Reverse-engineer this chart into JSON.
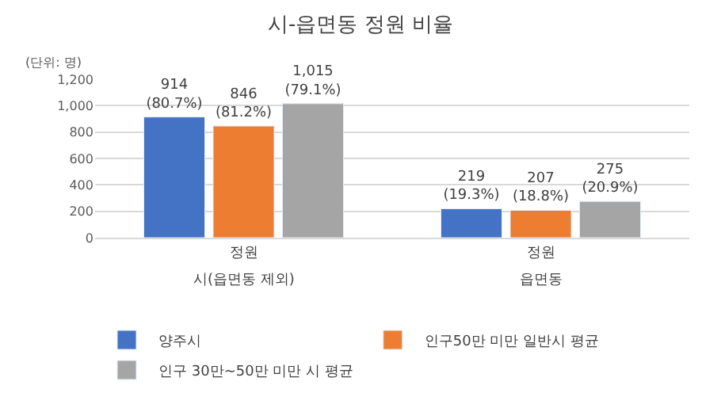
{
  "chart_data": {
    "type": "bar",
    "title": "시-읍면동 정원 비율",
    "ylabel": "(단위: 명)",
    "categories": [
      "정원",
      "정원"
    ],
    "series": [
      {
        "name": "양주시",
        "color": "#4472c4",
        "values": [
          914,
          219
        ],
        "value_labels": [
          "914\n(80.7%)",
          "219\n(19.3%)"
        ]
      },
      {
        "name": "인구50만 미만 일반시 평균",
        "color": "#ed7d31",
        "values": [
          846,
          207
        ],
        "value_labels": [
          "846\n(81.2%)",
          "207\n(18.8%)"
        ]
      },
      {
        "name": "인구 30만~50만 미만 시 평균",
        "color": "#a5a5a5",
        "values": [
          1015,
          275
        ],
        "value_labels": [
          "1,015\n(79.1%)",
          "275\n(20.9%)"
        ]
      }
    ],
    "annotations": [
      "시(읍면동 제외)",
      "읍면동"
    ],
    "ylim": [
      0,
      1200
    ],
    "yticks": [
      {
        "value": 0,
        "label": "0"
      },
      {
        "value": 200,
        "label": "200"
      },
      {
        "value": 400,
        "label": "400"
      },
      {
        "value": 600,
        "label": "600"
      },
      {
        "value": 800,
        "label": "800"
      },
      {
        "value": 1000,
        "label": "1,000"
      },
      {
        "value": 1200,
        "label": "1,200"
      }
    ],
    "grid": "y",
    "legend": "bottom"
  }
}
